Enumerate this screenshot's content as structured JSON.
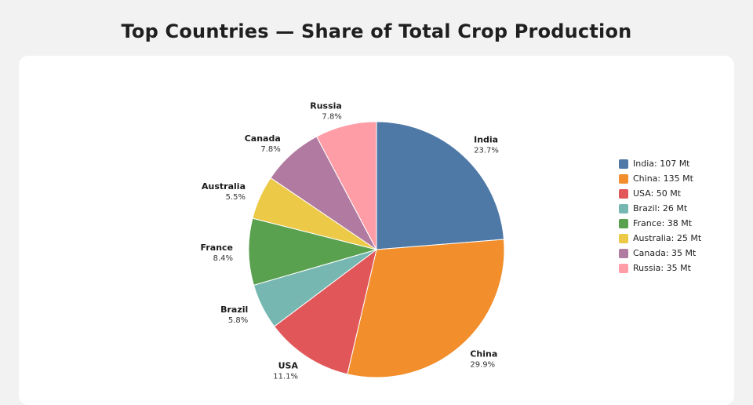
{
  "page": {
    "title": "Top Countries — Share of Total Crop Production"
  },
  "chart_data": {
    "type": "pie",
    "title": "Top Countries — Share of Total Crop Production",
    "categories": [
      "India",
      "China",
      "USA",
      "Brazil",
      "France",
      "Australia",
      "Canada",
      "Russia"
    ],
    "values": [
      107,
      135,
      50,
      26,
      38,
      25,
      35,
      35
    ],
    "percent_labels": [
      "23.7%",
      "29.9%",
      "11.1%",
      "5.8%",
      "8.4%",
      "5.5%",
      "7.8%",
      "7.8%"
    ],
    "legend_labels": [
      "India: 107 Mt",
      "China: 135 Mt",
      "USA: 50 Mt",
      "Brazil: 26 Mt",
      "France: 38 Mt",
      "Australia: 25 Mt",
      "Canada: 35 Mt",
      "Russia: 35 Mt"
    ],
    "colors": [
      "#4e79a7",
      "#f28e2b",
      "#e15759",
      "#76b7b2",
      "#59a14f",
      "#edc948",
      "#b07aa1",
      "#ff9da7"
    ],
    "legend_position": "right"
  }
}
